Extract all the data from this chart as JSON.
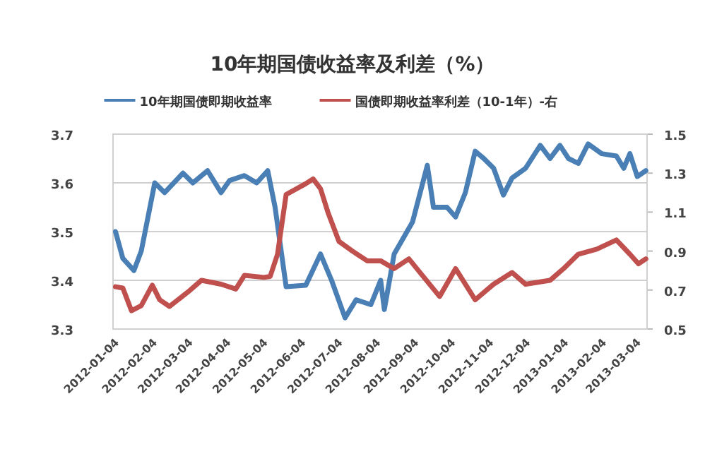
{
  "chart_data": {
    "type": "line",
    "title": "10年期国债收益率及利差（%）",
    "legend": "top",
    "grid": "y",
    "marker": "none",
    "line_style": "solid",
    "xlim": [
      "2012-01-02",
      "2013-03-12"
    ],
    "xticks": [
      "2012-01-04",
      "2012-02-04",
      "2012-03-04",
      "2012-04-04",
      "2012-05-04",
      "2012-06-04",
      "2012-07-04",
      "2012-08-04",
      "2012-09-04",
      "2012-10-04",
      "2012-11-04",
      "2012-12-04",
      "2013-01-04",
      "2013-02-04",
      "2013-03-04"
    ],
    "ylim": [
      3.3,
      3.7
    ],
    "yticks": [
      3.3,
      3.4,
      3.5,
      3.6,
      3.7
    ],
    "y2lim": [
      0.5,
      1.5
    ],
    "y2ticks": [
      0.5,
      0.7,
      0.9,
      1.1,
      1.3,
      1.5
    ],
    "series": [
      {
        "name": "10年期国债即期收益率",
        "color": "#4a7fb5",
        "x": [
          "2012-01-04",
          "2012-01-10",
          "2012-01-19",
          "2012-01-25",
          "2012-02-05",
          "2012-02-13",
          "2012-02-28",
          "2012-03-07",
          "2012-03-19",
          "2012-03-30",
          "2012-04-06",
          "2012-04-18",
          "2012-04-28",
          "2012-05-07",
          "2012-05-13",
          "2012-05-22",
          "2012-06-07",
          "2012-06-19",
          "2012-06-28",
          "2012-07-09",
          "2012-07-18",
          "2012-07-30",
          "2012-08-07",
          "2012-08-10",
          "2012-08-18",
          "2012-09-02",
          "2012-09-14",
          "2012-09-19",
          "2012-09-30",
          "2012-10-07",
          "2012-10-15",
          "2012-10-23",
          "2012-10-30",
          "2012-11-07",
          "2012-11-15",
          "2012-11-22",
          "2012-12-03",
          "2012-12-15",
          "2012-12-23",
          "2012-12-31",
          "2013-01-07",
          "2013-01-15",
          "2013-01-23",
          "2013-02-03",
          "2013-02-15",
          "2013-02-21",
          "2013-02-26",
          "2013-03-04",
          "2013-03-11"
        ],
        "values": [
          3.5,
          3.445,
          3.42,
          3.46,
          3.6,
          3.58,
          3.62,
          3.6,
          3.625,
          3.58,
          3.605,
          3.615,
          3.6,
          3.625,
          3.55,
          3.387,
          3.39,
          3.454,
          3.4,
          3.323,
          3.36,
          3.35,
          3.4,
          3.34,
          3.454,
          3.52,
          3.636,
          3.55,
          3.55,
          3.53,
          3.58,
          3.665,
          3.65,
          3.63,
          3.575,
          3.61,
          3.63,
          3.677,
          3.65,
          3.677,
          3.65,
          3.64,
          3.68,
          3.66,
          3.655,
          3.63,
          3.66,
          3.613,
          3.625
        ]
      },
      {
        "name": "国债即期收益率利差（10-1年）-右",
        "color": "#c0504d",
        "axis": "y2",
        "x": [
          "2012-01-04",
          "2012-01-10",
          "2012-01-17",
          "2012-01-25",
          "2012-02-03",
          "2012-02-09",
          "2012-02-17",
          "2012-03-03",
          "2012-03-14",
          "2012-03-30",
          "2012-04-11",
          "2012-04-18",
          "2012-05-04",
          "2012-05-09",
          "2012-05-15",
          "2012-05-22",
          "2012-06-07",
          "2012-06-13",
          "2012-06-19",
          "2012-06-25",
          "2012-07-04",
          "2012-07-15",
          "2012-07-27",
          "2012-08-07",
          "2012-08-18",
          "2012-08-30",
          "2012-09-10",
          "2012-09-24",
          "2012-10-07",
          "2012-10-23",
          "2012-11-07",
          "2012-11-22",
          "2012-12-03",
          "2012-12-23",
          "2013-01-03",
          "2013-01-15",
          "2013-01-30",
          "2013-02-15",
          "2013-02-26",
          "2013-03-05",
          "2013-03-11"
        ],
        "values": [
          0.717,
          0.71,
          0.594,
          0.62,
          0.725,
          0.65,
          0.616,
          0.69,
          0.75,
          0.73,
          0.705,
          0.775,
          0.765,
          0.77,
          0.884,
          1.19,
          1.246,
          1.27,
          1.22,
          1.1,
          0.95,
          0.9,
          0.85,
          0.85,
          0.81,
          0.86,
          0.775,
          0.667,
          0.81,
          0.65,
          0.73,
          0.79,
          0.73,
          0.75,
          0.81,
          0.884,
          0.91,
          0.957,
          0.884,
          0.835,
          0.86
        ]
      }
    ]
  }
}
